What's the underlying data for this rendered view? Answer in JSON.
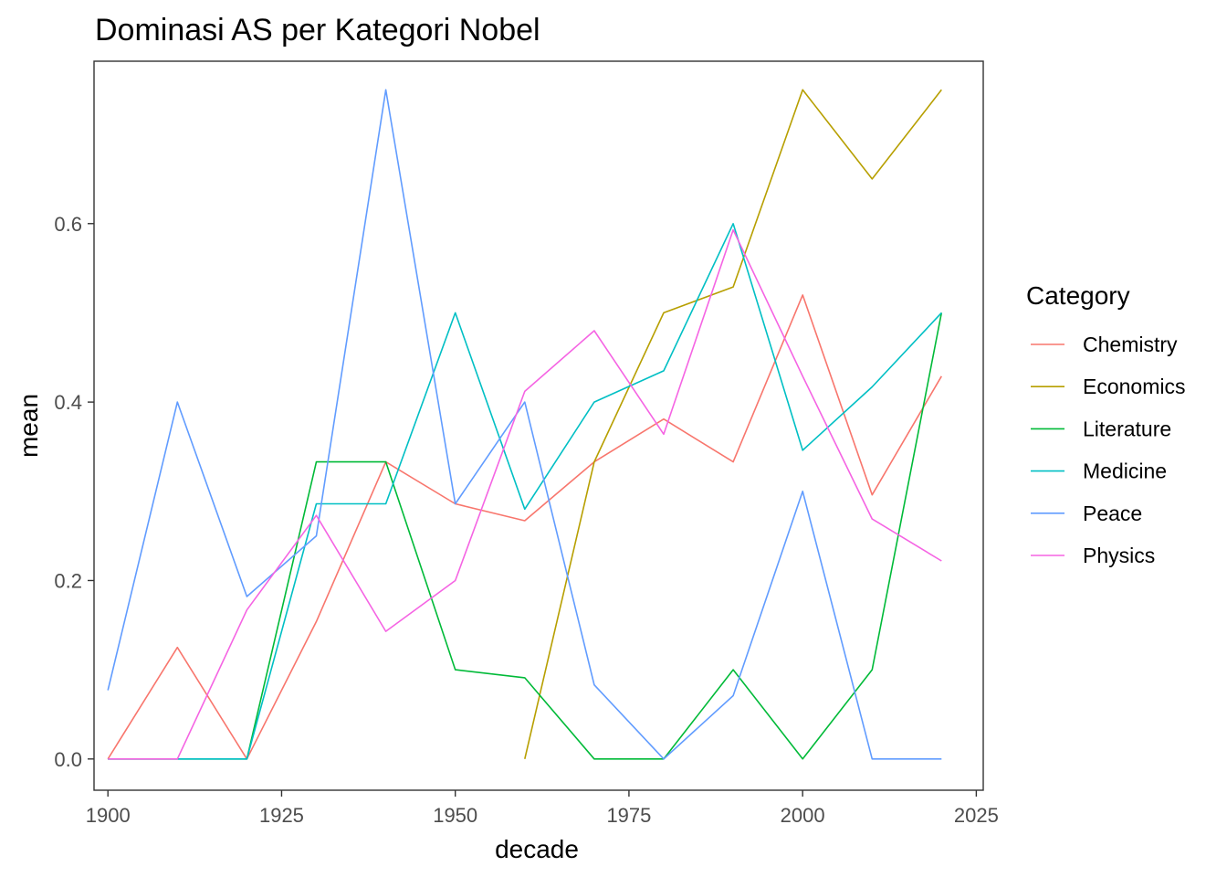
{
  "chart_data": {
    "type": "line",
    "title": "Dominasi AS per Kategori Nobel",
    "xlabel": "decade",
    "ylabel": "mean",
    "xlim": [
      1898,
      2026
    ],
    "ylim": [
      -0.035,
      0.782
    ],
    "xticks": [
      1900,
      1925,
      1950,
      1975,
      2000,
      2025
    ],
    "xtick_labels": [
      "1900",
      "1925",
      "1950",
      "1975",
      "2000",
      "2025"
    ],
    "yticks": [
      0.0,
      0.2,
      0.4,
      0.6
    ],
    "ytick_labels": [
      "0.0",
      "0.2",
      "0.4",
      "0.6"
    ],
    "grid": false,
    "legend": {
      "title": "Category",
      "position": "right"
    },
    "series": [
      {
        "name": "Chemistry",
        "color": "#F8766D",
        "x": [
          1900,
          1910,
          1920,
          1930,
          1940,
          1950,
          1960,
          1970,
          1980,
          1990,
          2000,
          2010,
          2020
        ],
        "y": [
          0.0,
          0.125,
          0.0,
          0.154,
          0.333,
          0.286,
          0.267,
          0.333,
          0.381,
          0.333,
          0.52,
          0.296,
          0.429
        ]
      },
      {
        "name": "Economics",
        "color": "#B79F00",
        "x": [
          1960,
          1970,
          1980,
          1990,
          2000,
          2010,
          2020
        ],
        "y": [
          0.0,
          0.333,
          0.5,
          0.529,
          0.75,
          0.65,
          0.75
        ]
      },
      {
        "name": "Literature",
        "color": "#00BA38",
        "x": [
          1900,
          1910,
          1920,
          1930,
          1940,
          1950,
          1960,
          1970,
          1980,
          1990,
          2000,
          2010,
          2020
        ],
        "y": [
          0.0,
          0.0,
          0.0,
          0.333,
          0.333,
          0.1,
          0.091,
          0.0,
          0.0,
          0.1,
          0.0,
          0.1,
          0.5
        ]
      },
      {
        "name": "Medicine",
        "color": "#00BFC4",
        "x": [
          1900,
          1910,
          1920,
          1930,
          1940,
          1950,
          1960,
          1970,
          1980,
          1990,
          2000,
          2010,
          2020
        ],
        "y": [
          0.0,
          0.0,
          0.0,
          0.286,
          0.286,
          0.5,
          0.28,
          0.4,
          0.435,
          0.6,
          0.346,
          0.417,
          0.5
        ]
      },
      {
        "name": "Peace",
        "color": "#619CFF",
        "x": [
          1900,
          1910,
          1920,
          1930,
          1940,
          1950,
          1960,
          1970,
          1980,
          1990,
          2000,
          2010,
          2020
        ],
        "y": [
          0.077,
          0.4,
          0.182,
          0.25,
          0.75,
          0.286,
          0.4,
          0.083,
          0.0,
          0.071,
          0.3,
          0.0,
          0.0
        ]
      },
      {
        "name": "Physics",
        "color": "#F564E3",
        "x": [
          1900,
          1910,
          1920,
          1930,
          1940,
          1950,
          1960,
          1970,
          1980,
          1990,
          2000,
          2010,
          2020
        ],
        "y": [
          0.0,
          0.0,
          0.167,
          0.273,
          0.143,
          0.2,
          0.412,
          0.48,
          0.364,
          0.593,
          0.429,
          0.269,
          0.222
        ]
      }
    ]
  }
}
